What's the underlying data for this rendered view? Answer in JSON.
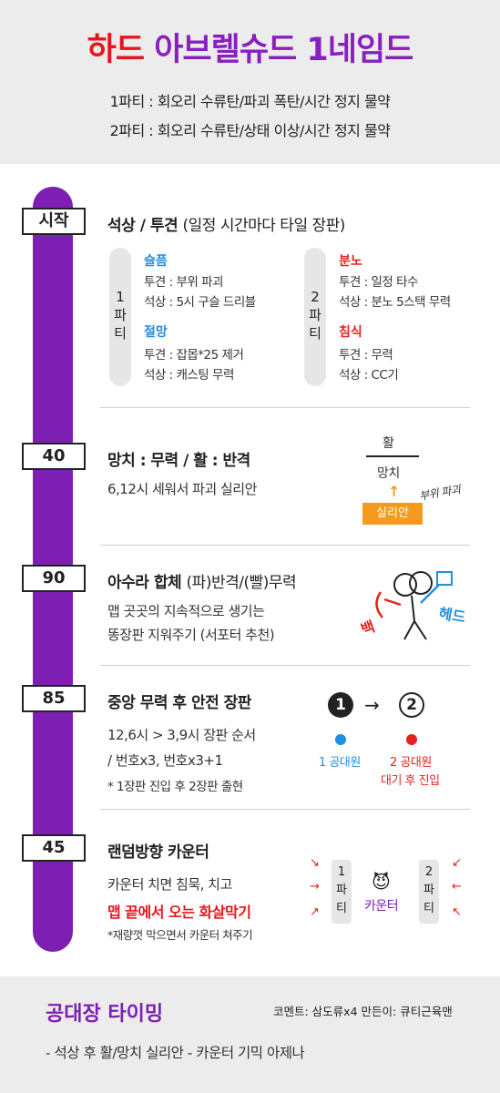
{
  "header": {
    "title_part1": "하드",
    "title_part2": "아브렐슈드 1네임드",
    "party1": "1파티 : 회오리 수류탄/파괴 폭탄/시간 정지 물약",
    "party2": "2파티 : 회오리 수류탄/상태 이상/시간 정지 물약"
  },
  "sections": {
    "start": {
      "badge": "시작",
      "title": "석상 / 투견",
      "title_note": "(일정 시간마다 타일 장판)",
      "party1_label": [
        "1",
        "파",
        "티"
      ],
      "party2_label": [
        "2",
        "파",
        "티"
      ],
      "sorrow": "슬픔",
      "sorrow_l1": "투견 : 부위 파괴",
      "sorrow_l2": "석상 : 5시 구슬 드리블",
      "despair": "절망",
      "despair_l1": "투견 : 잡몹*25 제거",
      "despair_l2": "석상 : 캐스팅 무력",
      "rage": "분노",
      "rage_l1": "투견 : 일정 타수",
      "rage_l2": "석상 : 분노 5스택 무력",
      "erosion": "침식",
      "erosion_l1": "투견 : 무력",
      "erosion_l2": "석상 : CC기"
    },
    "s40": {
      "badge": "40",
      "title": "망치 : 무력 / 활 : 반격",
      "line1": "6,12시 세워서 파괴 실리안",
      "diagram_top": "활",
      "diagram_bottom": "망치",
      "diagram_label": "실리안",
      "diagram_note": "부위 파괴"
    },
    "s90": {
      "badge": "90",
      "title": "아수라 합체",
      "title_note": "(파)반격/(빨)무력",
      "line1": "맵 곳곳의 지속적으로 생기는",
      "line2": "똥장판 지워주기 (서포터 추천)",
      "back_label": "백",
      "head_label": "헤드"
    },
    "s85": {
      "badge": "85",
      "title": "중앙 무력 후 안전 장판",
      "line1": "12,6시 > 3,9시 장판 순서",
      "line2": "/ 번호x3, 번호x3+1",
      "line3": "* 1장판 진입 후 2장판 출현",
      "num1": "1",
      "num2": "2",
      "arrow": "→",
      "team1": "1 공대원",
      "team2": "2 공대원",
      "team2_sub": "대기 후 진입"
    },
    "s45": {
      "badge": "45",
      "title": "랜덤방향 카운터",
      "line1": "카운터 치면 침묵, 치고",
      "line2": "맵 끝에서 오는 화살막기",
      "line3": "*재량껏 막으면서 카운터 쳐주기",
      "left_pill": [
        "1",
        "파",
        "티"
      ],
      "right_pill": [
        "2",
        "파",
        "티"
      ],
      "counter_label": "카운터",
      "devil_icon": "😈"
    }
  },
  "footer": {
    "title": "공대장 타이밍",
    "credit": "코멘트: 삼도류x4  만든이: 큐티근육맨",
    "timing": "- 석상 후 활/망치 실리안 - 카운터 기믹 아제나"
  },
  "colors": {
    "purple": "#7e1fb4",
    "red": "#e8141c",
    "blue": "#1f8fe0",
    "orange": "#f59a1c"
  }
}
